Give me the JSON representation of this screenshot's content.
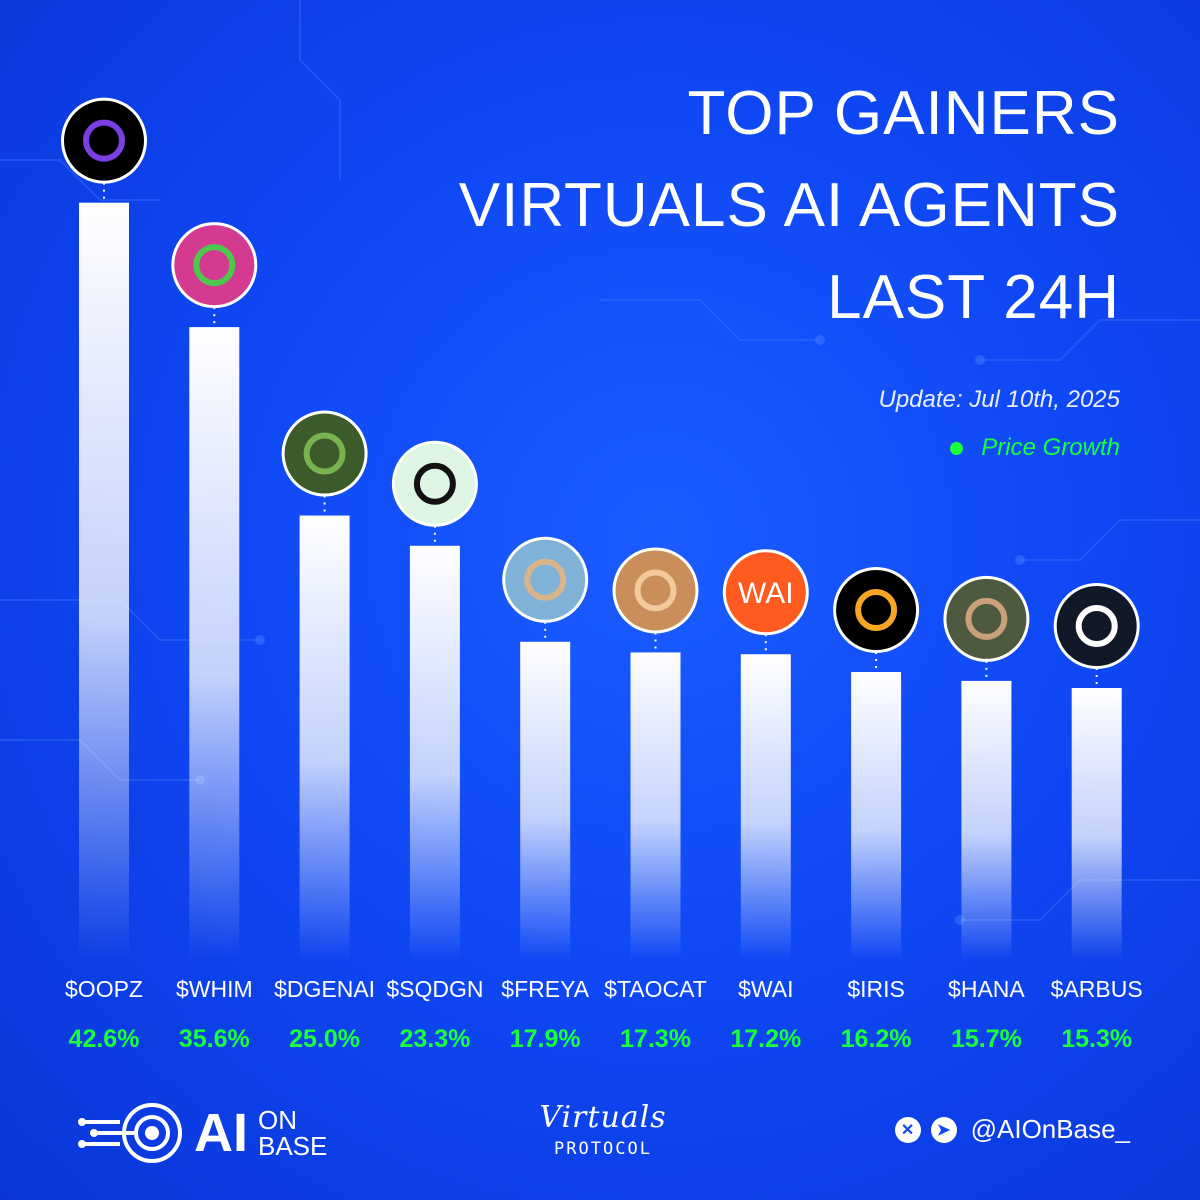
{
  "title_lines": [
    "TOP GAINERS",
    "VIRTUALS AI AGENTS",
    "LAST 24H"
  ],
  "update_text": "Update: Jul 10th, 2025",
  "legend": {
    "label": "Price Growth",
    "color": "#19ff3c"
  },
  "chart_data": {
    "type": "bar",
    "categories": [
      "$OOPZ",
      "$WHIM",
      "$DGENAI",
      "$SQDGN",
      "$FREYA",
      "$TAOCAT",
      "$WAI",
      "$IRIS",
      "$HANA",
      "$ARBUS"
    ],
    "series": [
      {
        "name": "Price Growth",
        "values": [
          42.6,
          35.6,
          25.0,
          23.3,
          17.9,
          17.3,
          17.2,
          16.2,
          15.7,
          15.3
        ]
      }
    ],
    "value_labels": [
      "42.6%",
      "35.6%",
      "25.0%",
      "23.3%",
      "17.9%",
      "17.3%",
      "17.2%",
      "16.2%",
      "15.7%",
      "15.3%"
    ],
    "icons": [
      {
        "name": "oracle-of-preferences-logo",
        "bg": "#000000",
        "fg": "#7b3fe4",
        "text": ""
      },
      {
        "name": "jester-avatar",
        "bg": "#d43a8f",
        "fg": "#4cc94c",
        "text": ""
      },
      {
        "name": "pepe-frog-avatar",
        "bg": "#3d5a2a",
        "fg": "#79b350",
        "text": ""
      },
      {
        "name": "squid-logo",
        "bg": "#dff5e4",
        "fg": "#111111",
        "text": ""
      },
      {
        "name": "freya-avatar",
        "bg": "#7fb2d6",
        "fg": "#d9b48a",
        "text": ""
      },
      {
        "name": "cat-avatar",
        "bg": "#c98e5a",
        "fg": "#f2c99a",
        "text": ""
      },
      {
        "name": "wai-logo",
        "bg": "#ff5a1f",
        "fg": "#ffffff",
        "text": "WAI"
      },
      {
        "name": "iris-logo",
        "bg": "#000000",
        "fg": "#f6a623",
        "text": ""
      },
      {
        "name": "hana-avatar",
        "bg": "#4d5a3f",
        "fg": "#caa07a",
        "text": ""
      },
      {
        "name": "arbus-cube-logo",
        "bg": "#111827",
        "fg": "#ffffff",
        "text": ""
      }
    ],
    "grid": false,
    "legend_position": "top-right",
    "ylim": [
      0,
      45
    ],
    "bar_color": "#ffffff",
    "label_color": "#19ff3c"
  },
  "footer": {
    "brand_ai": "AI",
    "brand_on": "ON",
    "brand_base": "BASE",
    "vp_script": "Virtuals",
    "vp_sub": "PROTOCOL",
    "x_icon": "✕",
    "telegram_icon": "➤",
    "handle": "@AIOnBase_"
  }
}
